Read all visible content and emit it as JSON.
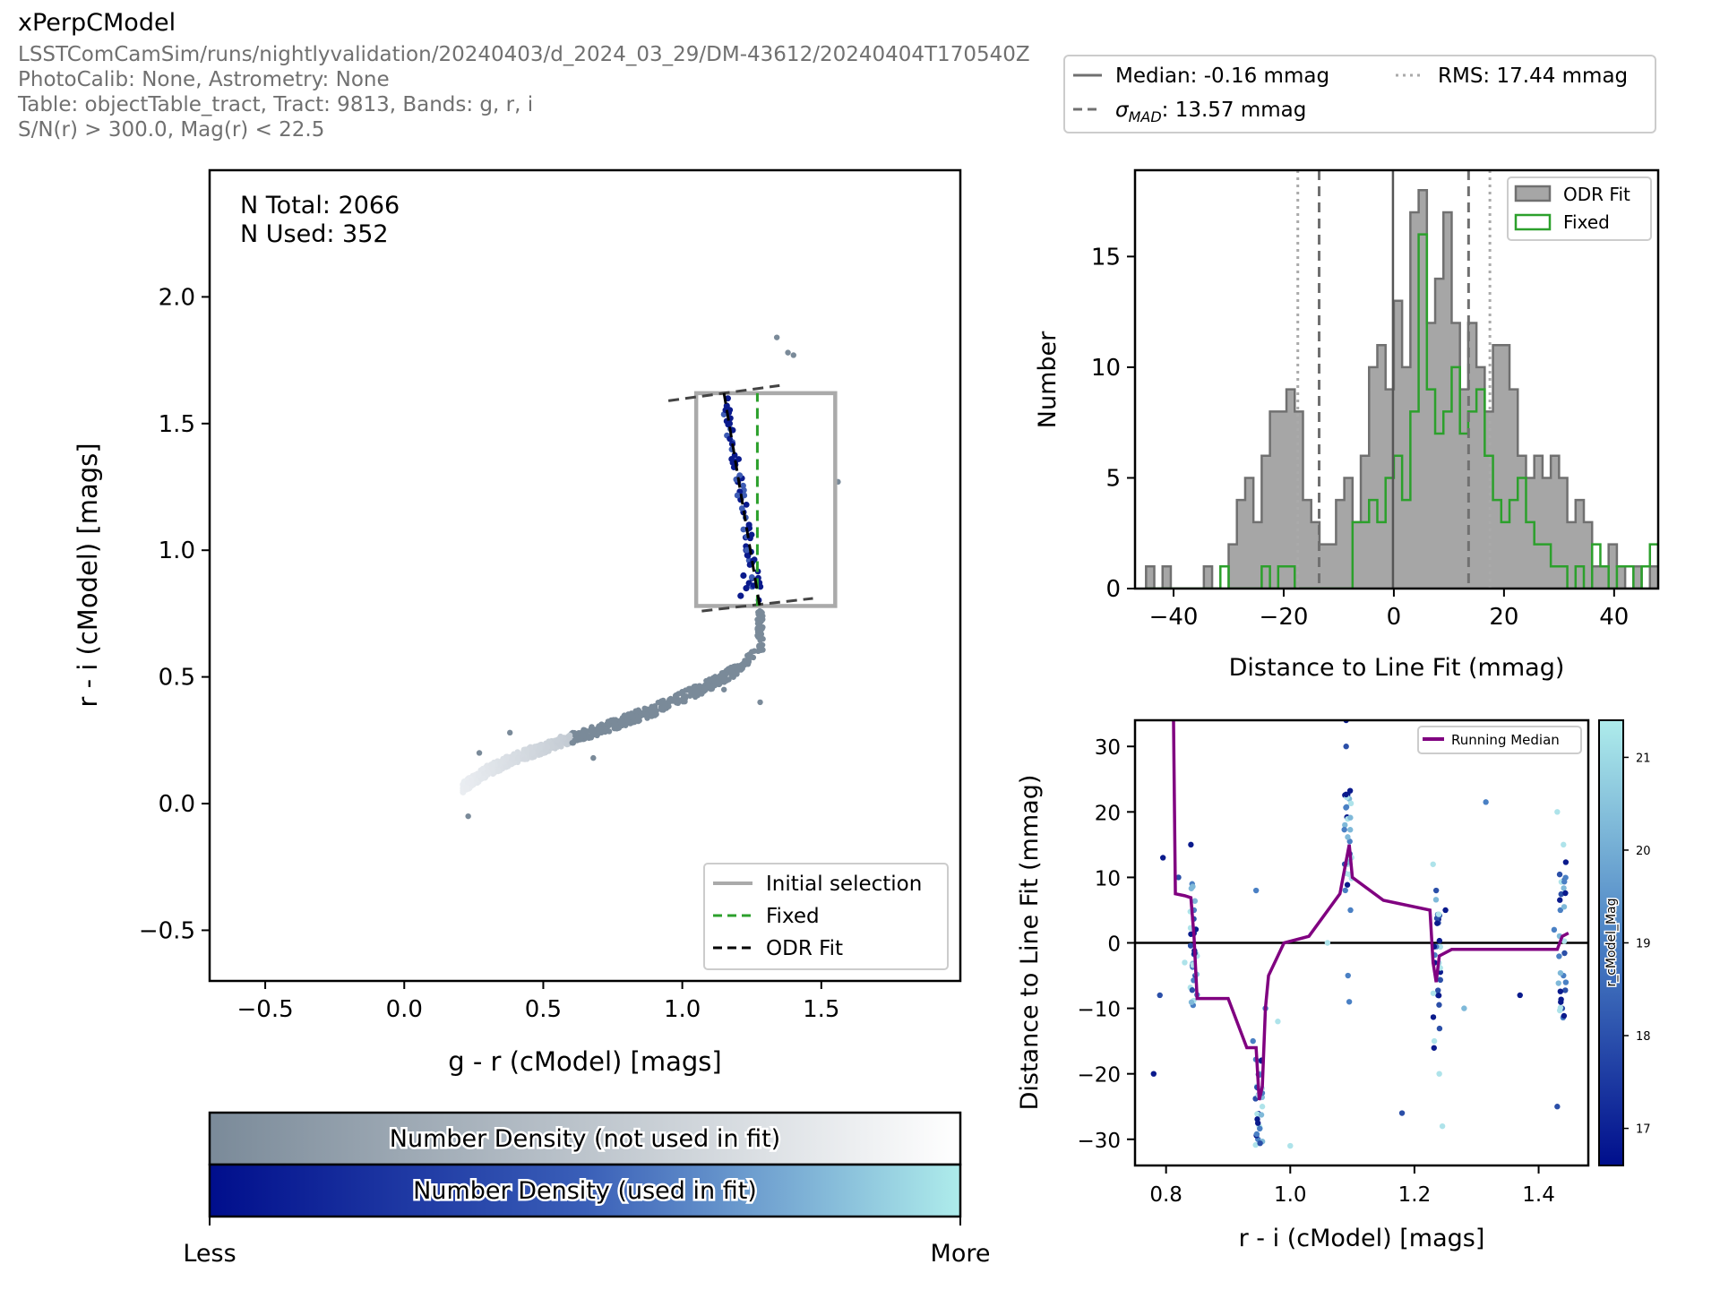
{
  "header": {
    "title": "xPerpCModel",
    "lines": [
      "LSSTComCamSim/runs/nightlyvalidation/20240403/d_2024_03_29/DM-43612/20240404T170540Z",
      "PhotoCalib: None, Astrometry: None",
      "Table: objectTable_tract, Tract: 9813, Bands: g, r, i",
      "S/N(r) > 300.0, Mag(r) < 22.5"
    ]
  },
  "stats_legend": {
    "median": "Median: -0.16 mmag",
    "rms": "RMS: 17.44 mmag",
    "sigma_symbol": "σ",
    "sigma_sub": "MAD",
    "sigma_value": ": 13.57 mmag"
  },
  "colors": {
    "not_used": "#7a8a99",
    "used": "#0a1a8c",
    "fixed": "#2ca02c",
    "odr": "#000000",
    "initial_selection": "#aaaaaa",
    "running_median": "#800080",
    "hist_fill": "#a6a6a6",
    "hist_edge": "#707070"
  },
  "chart_data": [
    {
      "type": "scatter",
      "xlabel": "g - r (cModel) [mags]",
      "ylabel": "r - i (cModel) [mags]",
      "xlim": [
        -0.7,
        2.0
      ],
      "ylim": [
        -0.7,
        2.5
      ],
      "xticks": [
        -0.5,
        0.0,
        0.5,
        1.0,
        1.5
      ],
      "xtick_labels": [
        "−0.5",
        "0.0",
        "0.5",
        "1.0",
        "1.5"
      ],
      "yticks": [
        -0.5,
        0.0,
        0.5,
        1.0,
        1.5,
        2.0
      ],
      "ytick_labels": [
        "−0.5",
        "0.0",
        "0.5",
        "1.0",
        "1.5",
        "2.0"
      ],
      "annotation": [
        "N Total: 2066",
        "N Used: 352"
      ],
      "legend": [
        "Initial selection",
        "Fixed",
        "ODR Fit"
      ],
      "legend_position": "lower right",
      "initial_selection_box": {
        "x": [
          1.05,
          1.55
        ],
        "y": [
          0.78,
          1.62
        ]
      },
      "fixed_line": {
        "x": [
          1.27,
          1.27
        ],
        "y": [
          0.78,
          1.62
        ]
      },
      "odr_line": {
        "x": [
          1.15,
          1.28
        ],
        "y": [
          1.62,
          0.77
        ]
      },
      "perp_lines": [
        {
          "x": [
            0.95,
            1.35
          ],
          "y": [
            1.59,
            1.65
          ]
        },
        {
          "x": [
            1.07,
            1.47
          ],
          "y": [
            0.76,
            0.81
          ]
        }
      ],
      "locus": [
        [
          0.22,
          0.07
        ],
        [
          0.3,
          0.13
        ],
        [
          0.4,
          0.18
        ],
        [
          0.5,
          0.22
        ],
        [
          0.6,
          0.26
        ],
        [
          0.7,
          0.29
        ],
        [
          0.8,
          0.33
        ],
        [
          0.9,
          0.37
        ],
        [
          1.0,
          0.42
        ],
        [
          1.1,
          0.47
        ],
        [
          1.2,
          0.53
        ],
        [
          1.27,
          0.6
        ]
      ],
      "used_points": [
        [
          1.21,
          0.82
        ],
        [
          1.23,
          0.85
        ],
        [
          1.24,
          0.87
        ],
        [
          1.22,
          0.9
        ],
        [
          1.25,
          0.95
        ],
        [
          1.23,
          1.0
        ],
        [
          1.24,
          1.1
        ],
        [
          1.22,
          1.15
        ],
        [
          1.21,
          1.2
        ],
        [
          1.2,
          1.27
        ],
        [
          1.19,
          1.35
        ],
        [
          1.18,
          1.42
        ],
        [
          1.17,
          1.5
        ],
        [
          1.16,
          1.57
        ]
      ],
      "outliers": [
        [
          1.34,
          1.84
        ],
        [
          1.38,
          1.78
        ],
        [
          1.4,
          1.77
        ],
        [
          1.56,
          1.27
        ],
        [
          1.29,
          0.65
        ],
        [
          1.28,
          0.7
        ],
        [
          1.28,
          0.68
        ],
        [
          1.15,
          0.45
        ],
        [
          1.28,
          0.4
        ],
        [
          0.23,
          -0.05
        ],
        [
          0.27,
          0.2
        ],
        [
          0.38,
          0.28
        ],
        [
          0.68,
          0.18
        ]
      ]
    },
    {
      "type": "histogram",
      "xlabel": "Distance to Line Fit (mmag)",
      "ylabel": "Number",
      "xlim": [
        -47,
        48
      ],
      "ylim": [
        0,
        18.9
      ],
      "xticks": [
        -40,
        -20,
        0,
        20,
        40
      ],
      "xtick_labels": [
        "−40",
        "−20",
        "0",
        "20",
        "40"
      ],
      "yticks": [
        0,
        5,
        10,
        15
      ],
      "ytick_labels": [
        "0",
        "5",
        "10",
        "15"
      ],
      "legend": [
        "ODR Fit",
        "Fixed"
      ],
      "legend_position": "upper right",
      "bin_width": 1.5,
      "bin_start": -45,
      "odr_counts": [
        1,
        0,
        1,
        0,
        0,
        0,
        0,
        1,
        0,
        0,
        2,
        4,
        5,
        3,
        6,
        8,
        8,
        9,
        8,
        4,
        3,
        2,
        2,
        4,
        5,
        3,
        6,
        10,
        11,
        9,
        13,
        10,
        17,
        18,
        12,
        14,
        17,
        12,
        9,
        12,
        10,
        8,
        11,
        11,
        9,
        6,
        5,
        6,
        5,
        6,
        5,
        3,
        4,
        3,
        1,
        1,
        2,
        1,
        0,
        1,
        0,
        1,
        1,
        0
      ],
      "fixed_counts": [
        0,
        0,
        0,
        0,
        0,
        0,
        0,
        0,
        0,
        1,
        0,
        0,
        0,
        0,
        1,
        0,
        1,
        1,
        0,
        0,
        0,
        0,
        0,
        0,
        0,
        3,
        3,
        4,
        3,
        5,
        6,
        4,
        8,
        16,
        9,
        7,
        8,
        10,
        7,
        8,
        9,
        6,
        4,
        3,
        4,
        5,
        3,
        2,
        2,
        1,
        1,
        0,
        1,
        0,
        2,
        1,
        0,
        1,
        1,
        0,
        1,
        2,
        1,
        4
      ],
      "vlines": {
        "median": -0.16,
        "sigma_mad": [
          -13.57,
          13.57
        ],
        "rms": [
          -17.44,
          17.44
        ]
      }
    },
    {
      "type": "scatter",
      "xlabel": "r - i (cModel) [mags]",
      "ylabel": "Distance to Line Fit (mmag)",
      "xlim": [
        0.75,
        1.48
      ],
      "ylim": [
        -34,
        34
      ],
      "xticks": [
        0.8,
        1.0,
        1.2,
        1.4
      ],
      "xtick_labels": [
        "0.8",
        "1.0",
        "1.2",
        "1.4"
      ],
      "yticks": [
        -30,
        -20,
        -10,
        0,
        10,
        20,
        30
      ],
      "ytick_labels": [
        "−30",
        "−20",
        "−10",
        "0",
        "10",
        "20",
        "30"
      ],
      "legend": [
        "Running Median"
      ],
      "legend_position": "upper right",
      "colorbar": {
        "label": "r_cModel_Mag",
        "range": [
          16.6,
          21.4
        ],
        "ticks": [
          17,
          18,
          19,
          20,
          21
        ],
        "tick_labels": [
          "17",
          "18",
          "19",
          "20",
          "21"
        ]
      },
      "running_median": [
        [
          0.812,
          34
        ],
        [
          0.815,
          7.5
        ],
        [
          0.83,
          7.2
        ],
        [
          0.84,
          6.9
        ],
        [
          0.845,
          1
        ],
        [
          0.85,
          -8.5
        ],
        [
          0.9,
          -8.5
        ],
        [
          0.93,
          -16
        ],
        [
          0.945,
          -16
        ],
        [
          0.95,
          -24
        ],
        [
          0.955,
          -22
        ],
        [
          0.96,
          -10
        ],
        [
          0.965,
          -5
        ],
        [
          0.99,
          0
        ],
        [
          1.03,
          1
        ],
        [
          1.08,
          7.5
        ],
        [
          1.095,
          15
        ],
        [
          1.1,
          10
        ],
        [
          1.15,
          6.5
        ],
        [
          1.225,
          5
        ],
        [
          1.23,
          -3
        ],
        [
          1.235,
          -6
        ],
        [
          1.24,
          -2
        ],
        [
          1.26,
          -1
        ],
        [
          1.33,
          -1
        ],
        [
          1.43,
          -1
        ],
        [
          1.438,
          1
        ],
        [
          1.448,
          1.5
        ]
      ],
      "points": [
        [
          0.795,
          13
        ],
        [
          0.79,
          -8
        ],
        [
          0.78,
          -20
        ],
        [
          0.82,
          10
        ],
        [
          0.83,
          -3
        ],
        [
          0.84,
          15
        ],
        [
          0.842,
          9
        ],
        [
          0.845,
          5
        ],
        [
          0.85,
          -2
        ],
        [
          0.847,
          -5
        ],
        [
          0.95,
          -28
        ],
        [
          0.948,
          -30
        ],
        [
          0.952,
          -20
        ],
        [
          0.955,
          -25
        ],
        [
          0.96,
          -10
        ],
        [
          0.94,
          -15
        ],
        [
          0.945,
          8
        ],
        [
          1.0,
          -31
        ],
        [
          0.98,
          -12
        ],
        [
          1.06,
          0
        ],
        [
          1.09,
          30
        ],
        [
          1.095,
          22
        ],
        [
          1.088,
          18
        ],
        [
          1.092,
          12
        ],
        [
          1.097,
          5
        ],
        [
          1.093,
          -5
        ],
        [
          1.095,
          -9
        ],
        [
          1.09,
          34
        ],
        [
          1.18,
          -26
        ],
        [
          1.23,
          12
        ],
        [
          1.235,
          8
        ],
        [
          1.238,
          -8
        ],
        [
          1.24,
          -20
        ],
        [
          1.232,
          -15
        ],
        [
          1.245,
          -28
        ],
        [
          1.25,
          5
        ],
        [
          1.315,
          21.5
        ],
        [
          1.28,
          -10
        ],
        [
          1.37,
          -8
        ],
        [
          1.43,
          20
        ],
        [
          1.44,
          15
        ],
        [
          1.435,
          5
        ],
        [
          1.44,
          -5
        ],
        [
          1.438,
          -10
        ],
        [
          1.43,
          -25
        ],
        [
          1.425,
          2
        ]
      ]
    }
  ],
  "colorbars": {
    "not_used_label": "Number Density (not used in fit)",
    "used_label": "Number Density (used in fit)",
    "less": "Less",
    "more": "More"
  }
}
